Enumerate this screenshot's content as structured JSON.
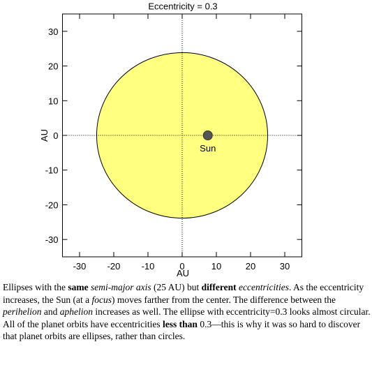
{
  "chart_data": {
    "type": "orbit",
    "title": "Eccentricity = 0.3",
    "xlabel": "AU",
    "ylabel": "AU",
    "xlim": [
      -35,
      35
    ],
    "ylim": [
      -35,
      35
    ],
    "xticks": [
      -30,
      -20,
      -10,
      0,
      10,
      20,
      30
    ],
    "yticks": [
      -30,
      -20,
      -10,
      0,
      10,
      20,
      30
    ],
    "orbit": {
      "semi_major": 25,
      "semi_minor": 23.85,
      "color": "#ffff80"
    },
    "sun": {
      "x": 7.5,
      "y": 0,
      "label": "Sun",
      "color": "#555555"
    }
  },
  "caption": [
    "Ellipses with the ",
    "same",
    " ",
    "semi-major axis",
    " (25 AU) but ",
    "different",
    " ",
    "eccentricities",
    ". As the eccentricity increases, the Sun (at a ",
    "focus",
    ") moves farther from the center. The difference between the ",
    "perihelion",
    " and ",
    "aphelion",
    " increases as well. The ellipse with eccentricity=0.3 looks almost circular. All of the planet orbits have eccentricities ",
    "less than",
    " 0.3—this is why it was so hard to discover that planet orbits are ellipses, rather than circles."
  ]
}
